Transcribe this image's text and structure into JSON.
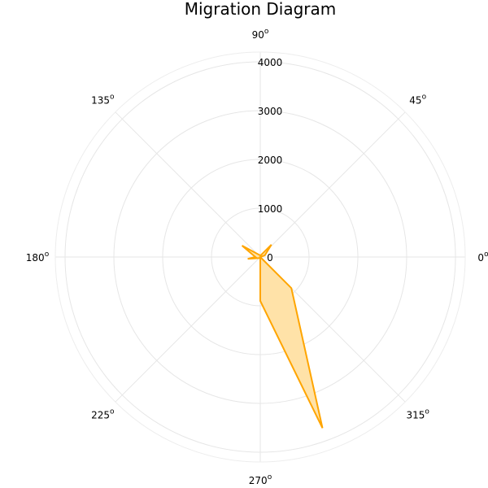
{
  "chart_data": {
    "type": "polar-area",
    "title": "Migration  Diagram",
    "angle_ticks": [
      {
        "deg": 0,
        "label": "0",
        "sup": "o"
      },
      {
        "deg": 45,
        "label": "45",
        "sup": "o"
      },
      {
        "deg": 90,
        "label": "90",
        "sup": "o"
      },
      {
        "deg": 135,
        "label": "135",
        "sup": "o"
      },
      {
        "deg": 180,
        "label": "180",
        "sup": "o"
      },
      {
        "deg": 225,
        "label": "225",
        "sup": "o"
      },
      {
        "deg": 270,
        "label": "270",
        "sup": "o"
      },
      {
        "deg": 315,
        "label": "315",
        "sup": "o"
      }
    ],
    "radial_ticks": [
      0,
      1000,
      2000,
      3000,
      4000
    ],
    "rlim": [
      0,
      4200
    ],
    "series": [
      {
        "color": "#ffa500",
        "fill": "#ffe2a8",
        "points": [
          {
            "angle": 0,
            "r": 0
          },
          {
            "angle": 20,
            "r": 100
          },
          {
            "angle": 48,
            "r": 340
          },
          {
            "angle": 80,
            "r": 30
          },
          {
            "angle": 148,
            "r": 440
          },
          {
            "angle": 180,
            "r": 100
          },
          {
            "angle": 188,
            "r": 260
          },
          {
            "angle": 270,
            "r": 20
          },
          {
            "angle": 270,
            "r": 900
          },
          {
            "angle": 290,
            "r": 3730
          },
          {
            "angle": 315,
            "r": 900
          },
          {
            "angle": 360,
            "r": 0
          }
        ]
      }
    ]
  }
}
